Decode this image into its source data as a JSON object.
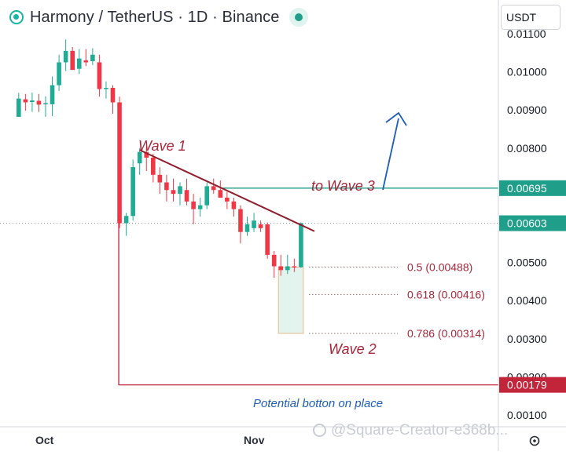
{
  "header": {
    "title": "Harmony / TetherUS · 1D · Binance",
    "currency": "USDT"
  },
  "chart_data": {
    "type": "candlestick",
    "y_axis": {
      "ticks": [
        0.011,
        0.01,
        0.009,
        0.008,
        0.007,
        0.006,
        0.005,
        0.004,
        0.003,
        0.002,
        0.001
      ],
      "tick_labels": [
        "0.01100",
        "0.01000",
        "0.00900",
        "0.00800",
        "0.00700",
        "0.00600",
        "0.00500",
        "0.00400",
        "0.00300",
        "0.00200",
        "0.00100"
      ],
      "scale": "linear"
    },
    "x_axis": {
      "labels": [
        {
          "label": "Oct",
          "day": 0
        },
        {
          "label": "Nov",
          "day": 31
        }
      ]
    },
    "price_tags": [
      {
        "label": "0.00695",
        "value": 0.00695,
        "color": "#1f9e8a"
      },
      {
        "label": "0.00603",
        "value": 0.00603,
        "color": "#1f9e8a"
      },
      {
        "label": "0.00179",
        "value": 0.00179,
        "color": "#c2253a"
      }
    ],
    "candles": [
      {
        "day": -4,
        "o": 0.00882,
        "h": 0.00945,
        "l": 0.00883,
        "c": 0.0093
      },
      {
        "day": -3,
        "o": 0.00928,
        "h": 0.00942,
        "l": 0.00898,
        "c": 0.0092
      },
      {
        "day": -2,
        "o": 0.00921,
        "h": 0.00946,
        "l": 0.00895,
        "c": 0.00925
      },
      {
        "day": -1,
        "o": 0.00924,
        "h": 0.00942,
        "l": 0.00895,
        "c": 0.00914
      },
      {
        "day": 0,
        "o": 0.00917,
        "h": 0.00936,
        "l": 0.00882,
        "c": 0.00918
      },
      {
        "day": 1,
        "o": 0.00915,
        "h": 0.00988,
        "l": 0.00884,
        "c": 0.00965
      },
      {
        "day": 2,
        "o": 0.00965,
        "h": 0.01045,
        "l": 0.0095,
        "c": 0.01025
      },
      {
        "day": 3,
        "o": 0.01025,
        "h": 0.01085,
        "l": 0.01002,
        "c": 0.01055
      },
      {
        "day": 4,
        "o": 0.01055,
        "h": 0.01065,
        "l": 0.0101,
        "c": 0.01005
      },
      {
        "day": 5,
        "o": 0.01008,
        "h": 0.0106,
        "l": 0.00995,
        "c": 0.01035
      },
      {
        "day": 6,
        "o": 0.0103,
        "h": 0.0106,
        "l": 0.01015,
        "c": 0.01025
      },
      {
        "day": 7,
        "o": 0.01028,
        "h": 0.01062,
        "l": 0.01018,
        "c": 0.01045
      },
      {
        "day": 8,
        "o": 0.01025,
        "h": 0.01045,
        "l": 0.00935,
        "c": 0.00955
      },
      {
        "day": 9,
        "o": 0.00955,
        "h": 0.00975,
        "l": 0.0093,
        "c": 0.00958
      },
      {
        "day": 10,
        "o": 0.00958,
        "h": 0.00965,
        "l": 0.0089,
        "c": 0.0092
      },
      {
        "day": 11,
        "o": 0.0092,
        "h": 0.00935,
        "l": 0.0059,
        "c": 0.00603
      },
      {
        "day": 12,
        "o": 0.00603,
        "h": 0.0063,
        "l": 0.0057,
        "c": 0.00622
      },
      {
        "day": 13,
        "o": 0.00622,
        "h": 0.0077,
        "l": 0.0061,
        "c": 0.0075
      },
      {
        "day": 14,
        "o": 0.0076,
        "h": 0.008,
        "l": 0.0073,
        "c": 0.0079
      },
      {
        "day": 15,
        "o": 0.0079,
        "h": 0.00805,
        "l": 0.0074,
        "c": 0.00775
      },
      {
        "day": 16,
        "o": 0.00775,
        "h": 0.00785,
        "l": 0.0071,
        "c": 0.0073
      },
      {
        "day": 17,
        "o": 0.0073,
        "h": 0.0075,
        "l": 0.0068,
        "c": 0.0071
      },
      {
        "day": 18,
        "o": 0.0071,
        "h": 0.0073,
        "l": 0.0066,
        "c": 0.0069
      },
      {
        "day": 19,
        "o": 0.0069,
        "h": 0.0072,
        "l": 0.0066,
        "c": 0.0068
      },
      {
        "day": 20,
        "o": 0.0068,
        "h": 0.0071,
        "l": 0.0065,
        "c": 0.007
      },
      {
        "day": 21,
        "o": 0.0069,
        "h": 0.0072,
        "l": 0.0065,
        "c": 0.0066
      },
      {
        "day": 22,
        "o": 0.0066,
        "h": 0.0068,
        "l": 0.006,
        "c": 0.0064
      },
      {
        "day": 23,
        "o": 0.0064,
        "h": 0.0067,
        "l": 0.0062,
        "c": 0.0065
      },
      {
        "day": 24,
        "o": 0.0065,
        "h": 0.0071,
        "l": 0.0064,
        "c": 0.007
      },
      {
        "day": 25,
        "o": 0.007,
        "h": 0.0072,
        "l": 0.0068,
        "c": 0.0069
      },
      {
        "day": 26,
        "o": 0.0069,
        "h": 0.00715,
        "l": 0.0067,
        "c": 0.0067
      },
      {
        "day": 27,
        "o": 0.0067,
        "h": 0.00685,
        "l": 0.0064,
        "c": 0.0066
      },
      {
        "day": 28,
        "o": 0.0066,
        "h": 0.0067,
        "l": 0.0062,
        "c": 0.0064
      },
      {
        "day": 29,
        "o": 0.0064,
        "h": 0.0065,
        "l": 0.0055,
        "c": 0.0058
      },
      {
        "day": 30,
        "o": 0.0058,
        "h": 0.0062,
        "l": 0.0057,
        "c": 0.006
      },
      {
        "day": 31,
        "o": 0.0059,
        "h": 0.0063,
        "l": 0.0058,
        "c": 0.0061
      },
      {
        "day": 32,
        "o": 0.006,
        "h": 0.0061,
        "l": 0.0058,
        "c": 0.0059
      },
      {
        "day": 33,
        "o": 0.006,
        "h": 0.00605,
        "l": 0.0051,
        "c": 0.0052
      },
      {
        "day": 34,
        "o": 0.0052,
        "h": 0.0053,
        "l": 0.0046,
        "c": 0.0049
      },
      {
        "day": 35,
        "o": 0.0049,
        "h": 0.0052,
        "l": 0.00465,
        "c": 0.0048
      },
      {
        "day": 36,
        "o": 0.0048,
        "h": 0.0052,
        "l": 0.0047,
        "c": 0.0049
      },
      {
        "day": 37,
        "o": 0.0049,
        "h": 0.0051,
        "l": 0.00475,
        "c": 0.00488
      },
      {
        "day": 38,
        "o": 0.00488,
        "h": 0.00605,
        "l": 0.00486,
        "c": 0.00603
      }
    ],
    "annotations": {
      "wave1_label": "Wave 1",
      "wave2_label": "Wave 2",
      "wave3_label": "to Wave 3",
      "trendline": {
        "from": {
          "day": 14,
          "value": 0.00795
        },
        "to": {
          "day": 40,
          "value": 0.00582
        }
      },
      "wave3_level": {
        "value": 0.00695,
        "from_day": 25
      },
      "current_price": 0.00603,
      "fib_levels": [
        {
          "label": "0.5 (0.00488)",
          "value": 0.00488
        },
        {
          "label": "0.618 (0.00416)",
          "value": 0.00416
        },
        {
          "label": "0.786 (0.00314)",
          "value": 0.00314
        }
      ],
      "support_level": {
        "value": 0.00179,
        "from_day": 11,
        "label": "Potential botton on place"
      },
      "target_zone": {
        "from_day": 35,
        "to_day": 38,
        "top": 0.00488,
        "bottom": 0.00314
      }
    },
    "colors": {
      "up": "#22ab94",
      "down": "#f23645",
      "annotation": "#a6273a",
      "wave3_line": "#1f9e8a",
      "arrow": "#1e5db8",
      "support_text": "#1e5db8"
    }
  },
  "watermark": "@Square-Creator-e368b..."
}
